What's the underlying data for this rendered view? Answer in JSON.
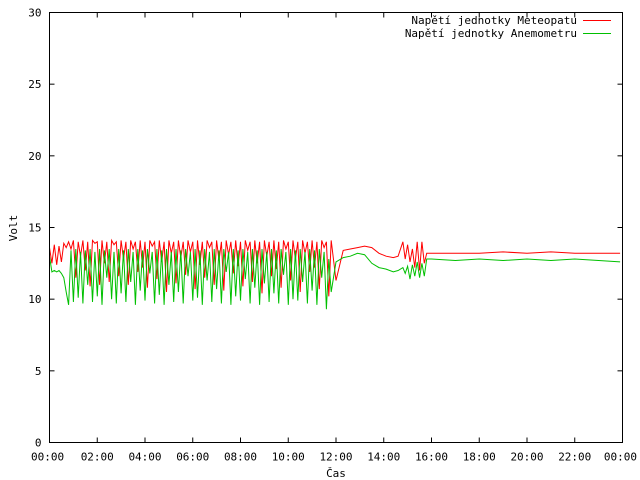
{
  "chart_data": {
    "type": "line",
    "xlabel": "Čas",
    "ylabel": "Volt",
    "xlim": [
      0,
      24
    ],
    "ylim": [
      0,
      30
    ],
    "x_ticks": [
      0,
      2,
      4,
      6,
      8,
      10,
      12,
      14,
      16,
      18,
      20,
      22,
      24
    ],
    "x_tick_labels": [
      "00:00",
      "02:00",
      "04:00",
      "06:00",
      "08:00",
      "10:00",
      "12:00",
      "14:00",
      "16:00",
      "18:00",
      "20:00",
      "22:00",
      "00:00"
    ],
    "y_ticks": [
      0,
      5,
      10,
      15,
      20,
      25,
      30
    ],
    "y_tick_labels": [
      "0",
      "5",
      "10",
      "15",
      "20",
      "25",
      "30"
    ],
    "grid": false,
    "legend_position": "top-right",
    "series": [
      {
        "name": "Napětí jednotky Meteopatu",
        "color": "#ff0000",
        "x": [
          0.0,
          0.1,
          0.2,
          0.3,
          0.4,
          0.5,
          0.6,
          0.7,
          0.8,
          0.9,
          1.0,
          1.1,
          1.2,
          1.3,
          1.4,
          1.5,
          1.6,
          1.7,
          1.8,
          1.9,
          2.0,
          2.1,
          2.2,
          2.3,
          2.4,
          2.5,
          2.6,
          2.7,
          2.8,
          2.9,
          3.0,
          3.1,
          3.2,
          3.3,
          3.4,
          3.5,
          3.6,
          3.7,
          3.8,
          3.9,
          4.0,
          4.1,
          4.2,
          4.3,
          4.4,
          4.5,
          4.6,
          4.7,
          4.8,
          4.9,
          5.0,
          5.1,
          5.2,
          5.3,
          5.4,
          5.5,
          5.6,
          5.7,
          5.8,
          5.9,
          6.0,
          6.1,
          6.2,
          6.3,
          6.4,
          6.5,
          6.6,
          6.7,
          6.8,
          6.9,
          7.0,
          7.1,
          7.2,
          7.3,
          7.4,
          7.5,
          7.6,
          7.7,
          7.8,
          7.9,
          8.0,
          8.1,
          8.2,
          8.3,
          8.4,
          8.5,
          8.6,
          8.7,
          8.8,
          8.9,
          9.0,
          9.1,
          9.2,
          9.3,
          9.4,
          9.5,
          9.6,
          9.7,
          9.8,
          9.9,
          10.0,
          10.1,
          10.2,
          10.3,
          10.4,
          10.5,
          10.6,
          10.7,
          10.8,
          10.9,
          11.0,
          11.1,
          11.2,
          11.3,
          11.4,
          11.5,
          11.6,
          11.7,
          11.8,
          12.0,
          12.3,
          12.6,
          12.9,
          13.2,
          13.5,
          13.8,
          14.1,
          14.4,
          14.6,
          14.8,
          14.9,
          15.0,
          15.1,
          15.2,
          15.3,
          15.4,
          15.5,
          15.6,
          15.7,
          15.8,
          16.0,
          17.0,
          18.0,
          19.0,
          20.0,
          21.0,
          22.0,
          23.0,
          23.9
        ],
        "y": [
          13.6,
          12.5,
          13.8,
          12.4,
          13.7,
          12.6,
          13.9,
          13.6,
          14.0,
          13.5,
          14.1,
          11.5,
          14.0,
          13.0,
          14.1,
          12.0,
          14.0,
          10.9,
          14.1,
          13.9,
          14.0,
          11.0,
          14.1,
          12.5,
          14.0,
          11.2,
          14.1,
          13.8,
          14.0,
          11.6,
          14.1,
          12.8,
          14.0,
          11.0,
          14.1,
          13.5,
          14.0,
          11.9,
          14.1,
          12.2,
          14.0,
          10.8,
          14.1,
          13.7,
          14.0,
          11.4,
          14.1,
          12.6,
          14.0,
          10.5,
          14.1,
          13.2,
          14.0,
          11.1,
          14.1,
          12.9,
          14.0,
          11.7,
          14.1,
          13.3,
          14.0,
          10.7,
          14.1,
          12.4,
          14.0,
          11.5,
          14.1,
          13.6,
          14.0,
          11.0,
          14.1,
          12.7,
          14.0,
          10.6,
          14.1,
          13.1,
          14.0,
          11.8,
          14.1,
          12.3,
          14.0,
          10.9,
          14.1,
          13.4,
          14.0,
          11.2,
          14.1,
          12.5,
          14.0,
          10.4,
          14.1,
          13.0,
          14.0,
          11.6,
          14.1,
          12.1,
          14.0,
          10.8,
          14.1,
          13.5,
          14.0,
          11.3,
          14.1,
          12.8,
          14.0,
          10.5,
          14.1,
          13.2,
          14.0,
          11.9,
          14.1,
          12.2,
          14.0,
          10.7,
          14.1,
          13.6,
          14.0,
          10.2,
          14.1,
          11.3,
          13.4,
          13.5,
          13.6,
          13.7,
          13.6,
          13.2,
          13.0,
          12.9,
          13.0,
          14.0,
          12.8,
          13.8,
          12.6,
          13.5,
          12.2,
          14.0,
          12.0,
          14.0,
          12.5,
          13.2,
          13.2,
          13.2,
          13.2,
          13.3,
          13.2,
          13.3,
          13.2,
          13.2,
          13.2
        ]
      },
      {
        "name": "Napětí jednotky Anemometru",
        "color": "#00c000",
        "x": [
          0.0,
          0.1,
          0.2,
          0.3,
          0.4,
          0.5,
          0.6,
          0.7,
          0.8,
          0.9,
          1.0,
          1.1,
          1.2,
          1.3,
          1.4,
          1.5,
          1.6,
          1.7,
          1.8,
          1.9,
          2.0,
          2.1,
          2.2,
          2.3,
          2.4,
          2.5,
          2.6,
          2.7,
          2.8,
          2.9,
          3.0,
          3.1,
          3.2,
          3.3,
          3.4,
          3.5,
          3.6,
          3.7,
          3.8,
          3.9,
          4.0,
          4.1,
          4.2,
          4.3,
          4.4,
          4.5,
          4.6,
          4.7,
          4.8,
          4.9,
          5.0,
          5.1,
          5.2,
          5.3,
          5.4,
          5.5,
          5.6,
          5.7,
          5.8,
          5.9,
          6.0,
          6.1,
          6.2,
          6.3,
          6.4,
          6.5,
          6.6,
          6.7,
          6.8,
          6.9,
          7.0,
          7.1,
          7.2,
          7.3,
          7.4,
          7.5,
          7.6,
          7.7,
          7.8,
          7.9,
          8.0,
          8.1,
          8.2,
          8.3,
          8.4,
          8.5,
          8.6,
          8.7,
          8.8,
          8.9,
          9.0,
          9.1,
          9.2,
          9.3,
          9.4,
          9.5,
          9.6,
          9.7,
          9.8,
          9.9,
          10.0,
          10.1,
          10.2,
          10.3,
          10.4,
          10.5,
          10.6,
          10.7,
          10.8,
          10.9,
          11.0,
          11.1,
          11.2,
          11.3,
          11.4,
          11.5,
          11.6,
          11.7,
          11.8,
          12.0,
          12.3,
          12.6,
          12.9,
          13.2,
          13.5,
          13.8,
          14.1,
          14.4,
          14.6,
          14.8,
          14.9,
          15.0,
          15.1,
          15.2,
          15.3,
          15.4,
          15.5,
          15.6,
          15.7,
          15.8,
          16.0,
          17.0,
          18.0,
          19.0,
          20.0,
          21.0,
          22.0,
          23.0,
          23.9
        ],
        "y": [
          13.0,
          11.9,
          12.0,
          11.9,
          12.0,
          11.8,
          11.5,
          10.5,
          9.6,
          13.4,
          9.8,
          13.5,
          10.1,
          13.3,
          9.7,
          13.4,
          11.0,
          13.5,
          9.8,
          13.3,
          10.2,
          13.5,
          9.6,
          13.4,
          11.5,
          13.5,
          10.0,
          13.3,
          9.7,
          13.5,
          10.4,
          13.4,
          9.8,
          13.5,
          11.2,
          13.3,
          9.6,
          13.5,
          10.6,
          13.4,
          9.9,
          13.5,
          11.8,
          13.3,
          9.7,
          13.5,
          10.3,
          13.4,
          9.6,
          13.5,
          11.0,
          13.3,
          9.8,
          13.5,
          10.5,
          13.4,
          9.7,
          13.5,
          11.6,
          13.3,
          9.9,
          13.5,
          10.1,
          13.4,
          9.6,
          13.5,
          11.3,
          13.3,
          9.8,
          13.5,
          10.7,
          13.4,
          9.7,
          13.5,
          11.9,
          13.3,
          9.6,
          13.5,
          10.2,
          13.4,
          9.9,
          13.5,
          11.4,
          13.3,
          9.7,
          13.5,
          10.8,
          13.4,
          9.6,
          13.5,
          11.1,
          13.3,
          9.8,
          13.5,
          10.4,
          13.4,
          9.7,
          13.5,
          11.7,
          13.3,
          9.6,
          13.5,
          10.0,
          13.4,
          9.9,
          13.5,
          11.2,
          13.3,
          9.7,
          13.5,
          10.6,
          13.4,
          9.6,
          13.5,
          11.5,
          13.3,
          9.3,
          12.8,
          10.5,
          12.6,
          12.9,
          13.0,
          13.2,
          13.1,
          12.5,
          12.2,
          12.1,
          11.9,
          12.0,
          12.2,
          11.8,
          12.3,
          11.4,
          12.4,
          11.6,
          12.6,
          11.5,
          12.5,
          11.6,
          12.8,
          12.8,
          12.7,
          12.8,
          12.7,
          12.8,
          12.7,
          12.8,
          12.7,
          12.6
        ]
      }
    ]
  }
}
